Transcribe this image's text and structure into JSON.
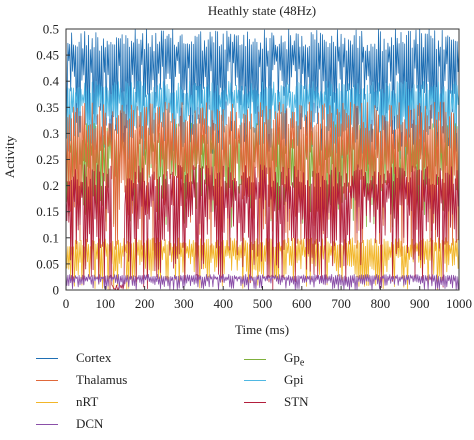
{
  "chart_data": {
    "type": "line",
    "title": "Heathly state (48Hz)",
    "xlabel": "Time (ms)",
    "ylabel": "Activity",
    "xlim": [
      0,
      1000
    ],
    "ylim": [
      0,
      0.5
    ],
    "x_ticks": [
      "0",
      "100",
      "200",
      "300",
      "400",
      "500",
      "600",
      "700",
      "800",
      "900",
      "1000"
    ],
    "y_ticks": [
      "0",
      "0.05",
      "0.1",
      "0.15",
      "0.2",
      "0.25",
      "0.3",
      "0.35",
      "0.4",
      "0.45",
      "0.5"
    ],
    "grid": false,
    "legend_position": "bottom",
    "series": [
      {
        "name": "Cortex",
        "color": "#1f6fb4",
        "band": [
          0.26,
          0.5
        ]
      },
      {
        "name": "Thalamus",
        "color": "#e0683a",
        "band": [
          0.05,
          0.36
        ]
      },
      {
        "name": "nRT",
        "color": "#f2b629",
        "band": [
          0.0,
          0.1
        ]
      },
      {
        "name": "DCN",
        "color": "#8a4fa8",
        "band": [
          0.0,
          0.03
        ]
      },
      {
        "name": "Gp",
        "sub": "e",
        "color": "#7fb03c",
        "band": [
          0.12,
          0.32
        ]
      },
      {
        "name": "Gpi",
        "color": "#4fb8e3",
        "band": [
          0.25,
          0.4
        ]
      },
      {
        "name": "STN",
        "color": "#b21e3c",
        "band": [
          0.0,
          0.24
        ]
      }
    ]
  }
}
